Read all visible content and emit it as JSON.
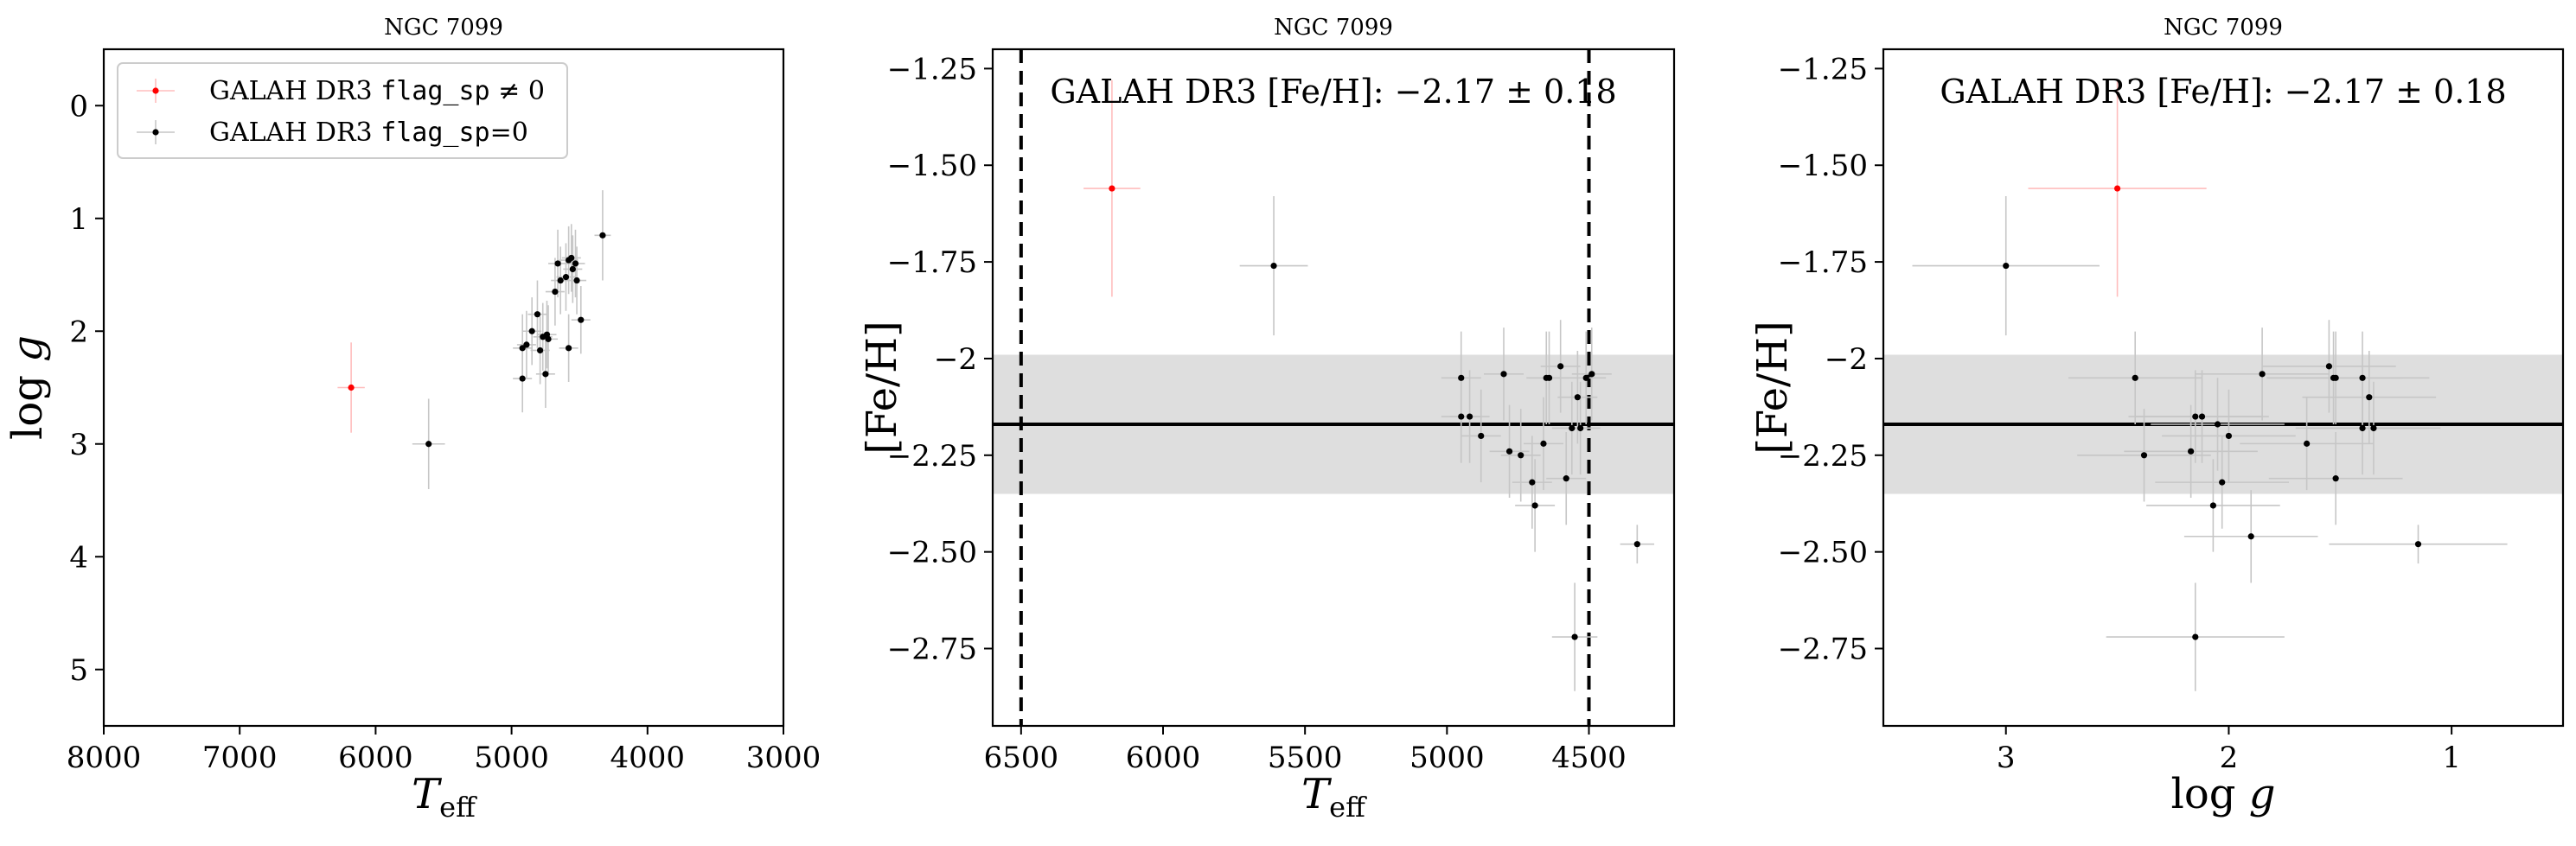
{
  "chart_data": [
    {
      "type": "scatter",
      "title": "NGC 7099",
      "xlabel": "T_eff",
      "ylabel": "log g",
      "xlim": [
        8000,
        3000
      ],
      "ylim": [
        5.5,
        -0.5
      ],
      "xticks": [
        8000,
        7000,
        6000,
        5000,
        4000,
        3000
      ],
      "yticks": [
        0,
        1,
        2,
        3,
        4,
        5
      ],
      "legend": {
        "placement": "upper-left",
        "entries": [
          {
            "label": "GALAH DR3 flag_sp ≠ 0",
            "color": "#ff0000"
          },
          {
            "label": "GALAH DR3 flag_sp=0",
            "color": "#000000"
          }
        ]
      },
      "series": [
        {
          "color": "#ff0000",
          "points": [
            {
              "x": 6180,
              "y": 2.5,
              "xerr": 100,
              "yerr": 0.4
            }
          ]
        },
        {
          "color": "#000000",
          "points": [
            {
              "x": 5610,
              "y": 3.0,
              "xerr": 120,
              "yerr": 0.4
            },
            {
              "x": 4330,
              "y": 1.15,
              "xerr": 60,
              "yerr": 0.4
            },
            {
              "x": 4920,
              "y": 2.15,
              "xerr": 70,
              "yerr": 0.3
            },
            {
              "x": 4890,
              "y": 2.12,
              "xerr": 70,
              "yerr": 0.3
            },
            {
              "x": 4920,
              "y": 2.42,
              "xerr": 70,
              "yerr": 0.3
            },
            {
              "x": 4850,
              "y": 2.0,
              "xerr": 70,
              "yerr": 0.3
            },
            {
              "x": 4810,
              "y": 1.85,
              "xerr": 70,
              "yerr": 0.3
            },
            {
              "x": 4790,
              "y": 2.17,
              "xerr": 70,
              "yerr": 0.3
            },
            {
              "x": 4770,
              "y": 2.05,
              "xerr": 70,
              "yerr": 0.3
            },
            {
              "x": 4750,
              "y": 2.38,
              "xerr": 70,
              "yerr": 0.3
            },
            {
              "x": 4730,
              "y": 2.07,
              "xerr": 70,
              "yerr": 0.3
            },
            {
              "x": 4740,
              "y": 2.03,
              "xerr": 70,
              "yerr": 0.3
            },
            {
              "x": 4680,
              "y": 1.65,
              "xerr": 70,
              "yerr": 0.3
            },
            {
              "x": 4660,
              "y": 1.4,
              "xerr": 70,
              "yerr": 0.3
            },
            {
              "x": 4640,
              "y": 1.55,
              "xerr": 70,
              "yerr": 0.3
            },
            {
              "x": 4600,
              "y": 1.52,
              "xerr": 70,
              "yerr": 0.3
            },
            {
              "x": 4580,
              "y": 1.37,
              "xerr": 70,
              "yerr": 0.3
            },
            {
              "x": 4560,
              "y": 1.35,
              "xerr": 70,
              "yerr": 0.3
            },
            {
              "x": 4550,
              "y": 1.45,
              "xerr": 70,
              "yerr": 0.3
            },
            {
              "x": 4530,
              "y": 1.4,
              "xerr": 70,
              "yerr": 0.3
            },
            {
              "x": 4580,
              "y": 2.15,
              "xerr": 70,
              "yerr": 0.3
            },
            {
              "x": 4520,
              "y": 1.55,
              "xerr": 70,
              "yerr": 0.3
            },
            {
              "x": 4490,
              "y": 1.9,
              "xerr": 70,
              "yerr": 0.3
            }
          ]
        }
      ]
    },
    {
      "type": "scatter",
      "title": "NGC 7099",
      "xlabel": "T_eff",
      "ylabel": "[Fe/H]",
      "xlim": [
        6600,
        4200
      ],
      "ylim": [
        -2.95,
        -1.2
      ],
      "xticks": [
        6500,
        6000,
        5500,
        5000,
        4500
      ],
      "yticks": [
        -1.25,
        -1.5,
        -1.75,
        -2.0,
        -2.25,
        -2.5,
        -2.75
      ],
      "annotation": "GALAH DR3 [Fe/H]: −2.17 ± 0.18",
      "reference": {
        "mean": -2.17,
        "band": [
          -2.35,
          -1.99
        ]
      },
      "vlines": [
        6500,
        4500
      ],
      "series": [
        {
          "color": "#ff0000",
          "points": [
            {
              "x": 6180,
              "y": -1.56,
              "xerr": 100,
              "yerr": 0.28
            }
          ]
        },
        {
          "color": "#000000",
          "points": [
            {
              "x": 5610,
              "y": -1.76,
              "xerr": 120,
              "yerr": 0.18
            },
            {
              "x": 4950,
              "y": -2.05,
              "xerr": 70,
              "yerr": 0.12
            },
            {
              "x": 4950,
              "y": -2.15,
              "xerr": 70,
              "yerr": 0.12
            },
            {
              "x": 4920,
              "y": -2.15,
              "xerr": 70,
              "yerr": 0.12
            },
            {
              "x": 4880,
              "y": -2.2,
              "xerr": 70,
              "yerr": 0.12
            },
            {
              "x": 4800,
              "y": -2.04,
              "xerr": 70,
              "yerr": 0.12
            },
            {
              "x": 4780,
              "y": -2.24,
              "xerr": 70,
              "yerr": 0.12
            },
            {
              "x": 4740,
              "y": -2.25,
              "xerr": 70,
              "yerr": 0.12
            },
            {
              "x": 4700,
              "y": -2.32,
              "xerr": 70,
              "yerr": 0.12
            },
            {
              "x": 4690,
              "y": -2.38,
              "xerr": 70,
              "yerr": 0.12
            },
            {
              "x": 4660,
              "y": -2.22,
              "xerr": 70,
              "yerr": 0.12
            },
            {
              "x": 4650,
              "y": -2.05,
              "xerr": 70,
              "yerr": 0.12
            },
            {
              "x": 4640,
              "y": -2.05,
              "xerr": 70,
              "yerr": 0.12
            },
            {
              "x": 4600,
              "y": -2.02,
              "xerr": 70,
              "yerr": 0.12
            },
            {
              "x": 4580,
              "y": -2.31,
              "xerr": 70,
              "yerr": 0.12
            },
            {
              "x": 4560,
              "y": -2.18,
              "xerr": 70,
              "yerr": 0.12
            },
            {
              "x": 4540,
              "y": -2.1,
              "xerr": 70,
              "yerr": 0.12
            },
            {
              "x": 4530,
              "y": -2.18,
              "xerr": 70,
              "yerr": 0.12
            },
            {
              "x": 4510,
              "y": -2.05,
              "xerr": 70,
              "yerr": 0.12
            },
            {
              "x": 4490,
              "y": -2.04,
              "xerr": 70,
              "yerr": 0.12
            },
            {
              "x": 4330,
              "y": -2.48,
              "xerr": 60,
              "yerr": 0.05
            },
            {
              "x": 4550,
              "y": -2.72,
              "xerr": 80,
              "yerr": 0.14
            }
          ]
        }
      ]
    },
    {
      "type": "scatter",
      "title": "NGC 7099",
      "xlabel": "log g",
      "ylabel": "[Fe/H]",
      "xlim": [
        3.55,
        0.5
      ],
      "ylim": [
        -2.95,
        -1.2
      ],
      "xticks": [
        3,
        2,
        1
      ],
      "yticks": [
        -1.25,
        -1.5,
        -1.75,
        -2.0,
        -2.25,
        -2.5,
        -2.75
      ],
      "annotation": "GALAH DR3 [Fe/H]: −2.17 ± 0.18",
      "reference": {
        "mean": -2.17,
        "band": [
          -2.35,
          -1.99
        ]
      },
      "series": [
        {
          "color": "#ff0000",
          "points": [
            {
              "x": 2.5,
              "y": -1.56,
              "xerr": 0.4,
              "yerr": 0.28
            }
          ]
        },
        {
          "color": "#000000",
          "points": [
            {
              "x": 3.0,
              "y": -1.76,
              "xerr": 0.42,
              "yerr": 0.18
            },
            {
              "x": 2.42,
              "y": -2.05,
              "xerr": 0.3,
              "yerr": 0.12
            },
            {
              "x": 2.38,
              "y": -2.25,
              "xerr": 0.3,
              "yerr": 0.12
            },
            {
              "x": 2.17,
              "y": -2.24,
              "xerr": 0.3,
              "yerr": 0.12
            },
            {
              "x": 2.15,
              "y": -2.15,
              "xerr": 0.3,
              "yerr": 0.12
            },
            {
              "x": 2.12,
              "y": -2.15,
              "xerr": 0.3,
              "yerr": 0.12
            },
            {
              "x": 2.07,
              "y": -2.38,
              "xerr": 0.3,
              "yerr": 0.12
            },
            {
              "x": 2.05,
              "y": -2.17,
              "xerr": 0.3,
              "yerr": 0.12
            },
            {
              "x": 2.03,
              "y": -2.32,
              "xerr": 0.3,
              "yerr": 0.12
            },
            {
              "x": 2.0,
              "y": -2.2,
              "xerr": 0.3,
              "yerr": 0.12
            },
            {
              "x": 1.9,
              "y": -2.46,
              "xerr": 0.3,
              "yerr": 0.12
            },
            {
              "x": 1.85,
              "y": -2.04,
              "xerr": 0.3,
              "yerr": 0.12
            },
            {
              "x": 1.65,
              "y": -2.22,
              "xerr": 0.3,
              "yerr": 0.12
            },
            {
              "x": 1.55,
              "y": -2.02,
              "xerr": 0.3,
              "yerr": 0.12
            },
            {
              "x": 1.53,
              "y": -2.05,
              "xerr": 0.3,
              "yerr": 0.12
            },
            {
              "x": 1.52,
              "y": -2.05,
              "xerr": 0.3,
              "yerr": 0.12
            },
            {
              "x": 1.52,
              "y": -2.31,
              "xerr": 0.3,
              "yerr": 0.12
            },
            {
              "x": 1.4,
              "y": -2.05,
              "xerr": 0.3,
              "yerr": 0.12
            },
            {
              "x": 1.4,
              "y": -2.18,
              "xerr": 0.3,
              "yerr": 0.12
            },
            {
              "x": 1.37,
              "y": -2.1,
              "xerr": 0.3,
              "yerr": 0.12
            },
            {
              "x": 1.35,
              "y": -2.18,
              "xerr": 0.3,
              "yerr": 0.12
            },
            {
              "x": 1.15,
              "y": -2.48,
              "xerr": 0.4,
              "yerr": 0.05
            },
            {
              "x": 2.15,
              "y": -2.72,
              "xerr": 0.4,
              "yerr": 0.14
            }
          ]
        }
      ]
    }
  ]
}
